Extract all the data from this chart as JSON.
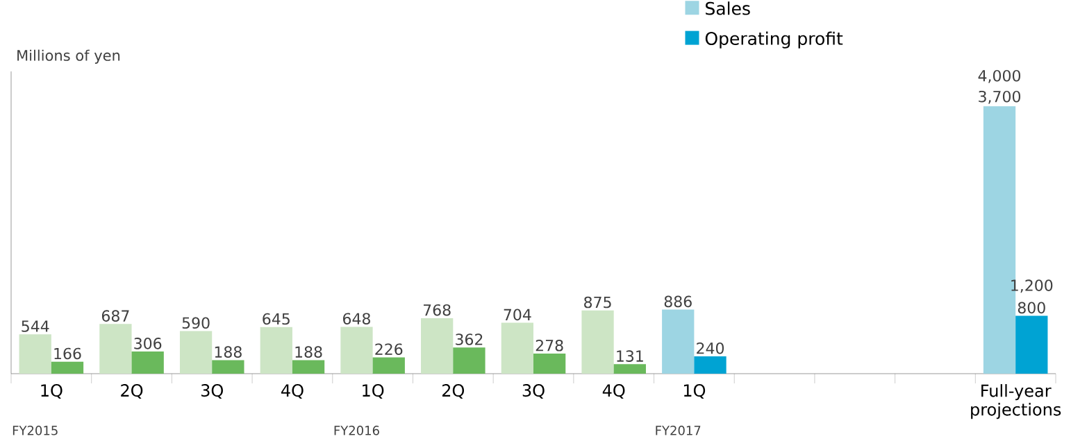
{
  "chart_data": {
    "type": "bar",
    "ylabel": "Millions of yen",
    "categories": [
      "1Q",
      "2Q",
      "3Q",
      "4Q",
      "1Q",
      "2Q",
      "3Q",
      "4Q",
      "1Q",
      null,
      null,
      null,
      "Full-year projections"
    ],
    "series": [
      {
        "name": "Sales",
        "color": "#9dd5e3",
        "colors": [
          "#cde5c5",
          "#cde5c5",
          "#cde5c5",
          "#cde5c5",
          "#cde5c5",
          "#cde5c5",
          "#cde5c5",
          "#cde5c5",
          "#9dd5e3",
          null,
          null,
          null,
          "#9dd5e3"
        ],
        "values": [
          544,
          687,
          590,
          645,
          648,
          768,
          704,
          875,
          886,
          null,
          null,
          null,
          3700
        ],
        "value_labels": [
          "544",
          "687",
          "590",
          "645",
          "648",
          "768",
          "704",
          "875",
          "886",
          null,
          null,
          null,
          "3,700"
        ]
      },
      {
        "name": "Operating profit",
        "color": "#00a3d3",
        "colors": [
          "#6ab95c",
          "#6ab95c",
          "#6ab95c",
          "#6ab95c",
          "#6ab95c",
          "#6ab95c",
          "#6ab95c",
          "#6ab95c",
          "#00a3d3",
          null,
          null,
          null,
          "#00a3d3"
        ],
        "values": [
          166,
          306,
          188,
          188,
          226,
          362,
          278,
          131,
          240,
          null,
          null,
          null,
          800
        ],
        "value_labels": [
          "166",
          "306",
          "188",
          "188",
          "226",
          "362",
          "278",
          "131",
          "240",
          null,
          null,
          null,
          "800"
        ]
      }
    ],
    "annotations": [
      "FY2015",
      "FY2016",
      "FY2017",
      "4,000",
      "1,200"
    ],
    "legend": "top right"
  }
}
